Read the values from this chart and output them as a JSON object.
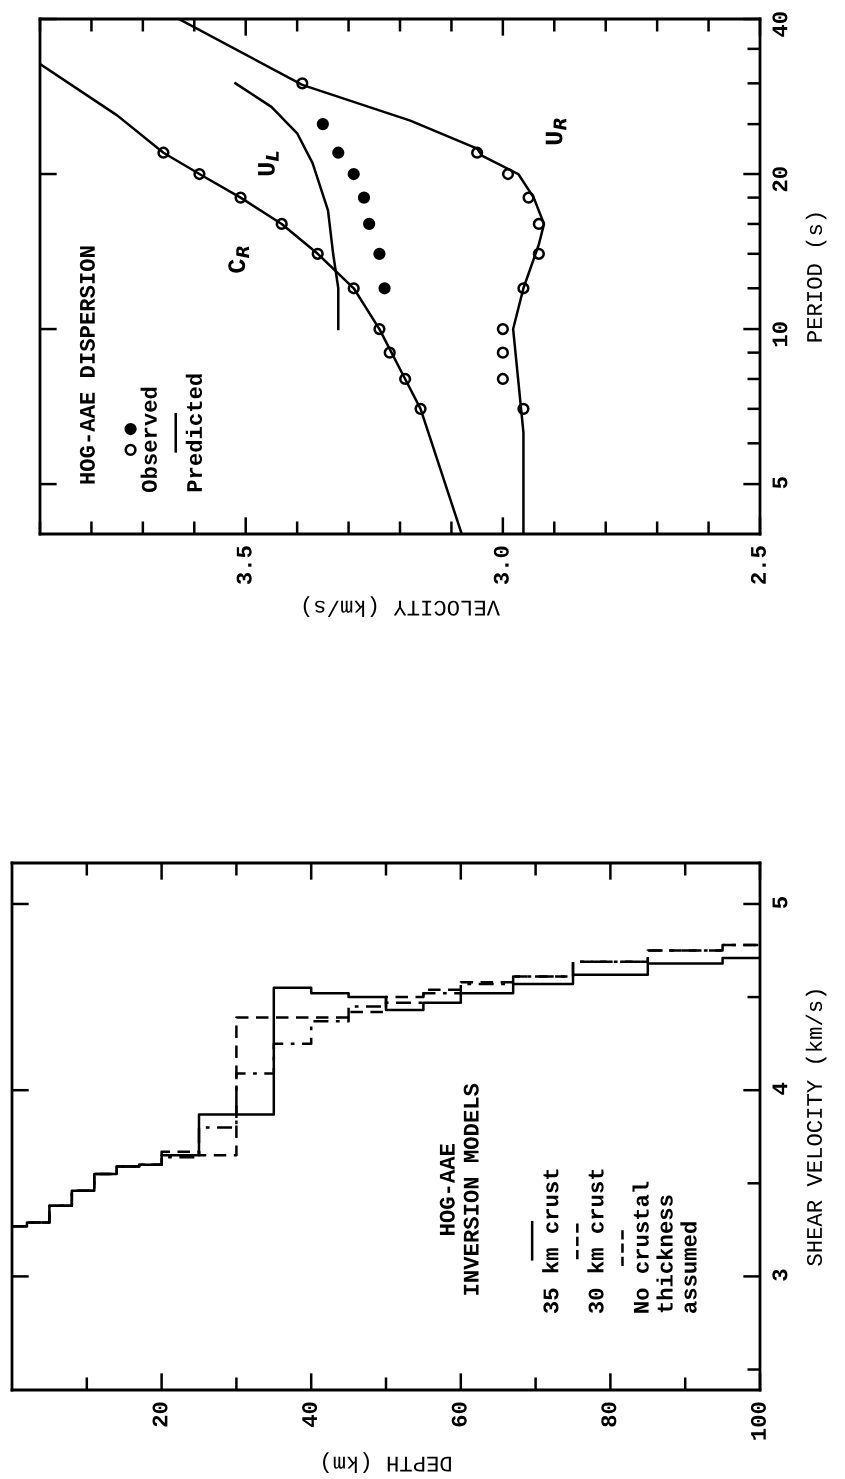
{
  "chart_data": [
    {
      "type": "scatter",
      "xlabel": "VELOCITY (km/s)",
      "ylabel": "PERIOD (s)",
      "legend_title": "HOG-AAE DISPERSION",
      "legend": "left",
      "log": "y",
      "xlim": [
        3.9,
        2.5
      ],
      "ylim": [
        4,
        40
      ],
      "xticks": [
        {
          "value": 3.9,
          "label": null
        },
        {
          "value": 3.8,
          "label": null
        },
        {
          "value": 3.7,
          "label": null
        },
        {
          "value": 3.6,
          "label": null
        },
        3.5,
        {
          "value": 3.4,
          "label": null
        },
        {
          "value": 3.3,
          "label": null
        },
        {
          "value": 3.2,
          "label": null
        },
        {
          "value": 3.1,
          "label": null
        },
        {
          "value": 3,
          "label": "3.0"
        },
        {
          "value": 2.9,
          "label": null
        },
        {
          "value": 2.8,
          "label": null
        },
        {
          "value": 2.7,
          "label": null
        },
        {
          "value": 2.6,
          "label": null
        },
        2.5
      ],
      "yticks": [
        5,
        {
          "value": 6,
          "label": null
        },
        {
          "value": 7,
          "label": null
        },
        {
          "value": 8,
          "label": null
        },
        {
          "value": 9,
          "label": null
        },
        10,
        {
          "value": 12,
          "label": null
        },
        {
          "value": 14,
          "label": null
        },
        {
          "value": 16,
          "label": null
        },
        {
          "value": 18,
          "label": null
        },
        20,
        {
          "value": 25,
          "label": null
        },
        {
          "value": 30,
          "label": null
        },
        {
          "value": 35,
          "label": null
        },
        40
      ],
      "series": [
        {
          "name": "Observed",
          "type": "scatter",
          "marker": "circle",
          "color": "#ffffff",
          "x": [
            3.66,
            3.59,
            3.51,
            3.43,
            3.36,
            3.29,
            3.24,
            3.22,
            3.19,
            3.16,
            3.39,
            3.05,
            2.99,
            2.95,
            2.93,
            2.93,
            2.96,
            3.0,
            3.0,
            3.0,
            2.96
          ],
          "values": [
            22,
            20,
            18,
            16,
            14,
            12,
            10,
            9,
            8,
            7,
            30,
            22,
            20,
            18,
            16,
            14,
            12,
            10,
            9,
            8,
            7
          ]
        },
        {
          "type": "scatter",
          "marker": "circle",
          "color": "#000000",
          "x": [
            3.35,
            3.32,
            3.29,
            3.27,
            3.26,
            3.24,
            3.23
          ],
          "values": [
            25,
            22,
            20,
            18,
            16,
            14,
            12
          ]
        },
        {
          "name": "Predicted",
          "type": "line",
          "color": "#000000",
          "x": [
            3.08,
            3.16,
            3.19,
            3.24,
            3.29,
            3.36,
            3.43,
            3.51,
            3.59,
            3.66,
            3.75,
            3.9
          ],
          "values": [
            4,
            7,
            8,
            10,
            12,
            14,
            16,
            18,
            20,
            22,
            26,
            32.7
          ]
        },
        {
          "type": "line",
          "color": "#000000",
          "x": [
            3.32,
            3.32,
            3.33,
            3.34,
            3.37,
            3.4,
            3.45,
            3.52
          ],
          "values": [
            10,
            12,
            14,
            17,
            21,
            24,
            27,
            30
          ]
        },
        {
          "type": "line",
          "color": "#000000",
          "x": [
            2.96,
            2.96,
            2.98,
            2.96,
            2.93,
            2.92,
            2.94,
            2.97,
            3.04,
            3.05,
            3.18,
            3.39,
            3.63
          ],
          "values": [
            4,
            6.3,
            10,
            12,
            14.6,
            16,
            18,
            20,
            21.7,
            22.4,
            25.4,
            29.8,
            40
          ]
        }
      ],
      "annotations": [
        {
          "text": "C$_{R}$",
          "x": 3.46,
          "y": 16.8
        },
        {
          "text": "U$_{L}$",
          "x": 3.37,
          "y": 21
        },
        {
          "text": "U$_{R}$",
          "x": 2.97,
          "y": 20
        }
      ]
    },
    {
      "type": "step",
      "xlabel": "DEPTH (km)",
      "ylabel": "SHEAR VELOCITY (km/s)",
      "legend_title": "HOG-AAE\nINVERSION MODELS",
      "legend": "center",
      "xlim": [
        0,
        100
      ],
      "ylim": [
        2.39,
        5.22
      ],
      "xticks": [
        {
          "value": 10,
          "label": null
        },
        20,
        {
          "value": 30,
          "label": null
        },
        40,
        {
          "value": 50,
          "label": null
        },
        60,
        {
          "value": 70,
          "label": null
        },
        80,
        {
          "value": 90,
          "label": null
        },
        100
      ],
      "yticks": [
        {
          "value": 2.5,
          "label": null
        },
        3,
        {
          "value": 3.5,
          "label": null
        },
        4,
        {
          "value": 4.5,
          "label": null
        },
        5
      ],
      "series": [
        {
          "name": "35 km crust",
          "line_style": "solid",
          "color": "#000000",
          "x": [
            0,
            2,
            5,
            8,
            11,
            14,
            17,
            20,
            25,
            30,
            35,
            40,
            45,
            50,
            55,
            60,
            67,
            75,
            85,
            95,
            100
          ],
          "values": [
            3.27,
            3.29,
            3.38,
            3.46,
            3.55,
            3.59,
            3.6,
            3.65,
            3.87,
            3.87,
            4.55,
            4.52,
            4.5,
            4.43,
            4.47,
            4.52,
            4.57,
            4.62,
            4.68,
            4.71,
            4.71
          ]
        },
        {
          "name": "30 km crust",
          "line_style": "dashed",
          "color": "#000000",
          "x": [
            0,
            2,
            5,
            8,
            11,
            14,
            17,
            20,
            25,
            30,
            35,
            40,
            45,
            50,
            55,
            60,
            67,
            75,
            85,
            95,
            100
          ],
          "values": [
            3.27,
            3.29,
            3.38,
            3.46,
            3.55,
            3.59,
            3.6,
            3.67,
            3.65,
            4.39,
            4.39,
            4.39,
            4.42,
            4.5,
            4.54,
            4.58,
            4.61,
            4.69,
            4.75,
            4.78,
            4.78
          ]
        },
        {
          "name": "No crustal\nthickness\nassumed",
          "line_style": "dashdot",
          "color": "#000000",
          "x": [
            0,
            2,
            5,
            8,
            11,
            14,
            17,
            20,
            25,
            30,
            35,
            40,
            45,
            50,
            55,
            60,
            67,
            75,
            85,
            95,
            100
          ],
          "values": [
            3.27,
            3.29,
            3.38,
            3.46,
            3.55,
            3.59,
            3.6,
            3.64,
            3.8,
            4.09,
            4.25,
            4.37,
            4.45,
            4.47,
            4.52,
            4.57,
            4.61,
            4.69,
            4.75,
            4.78,
            4.78
          ]
        }
      ]
    }
  ]
}
